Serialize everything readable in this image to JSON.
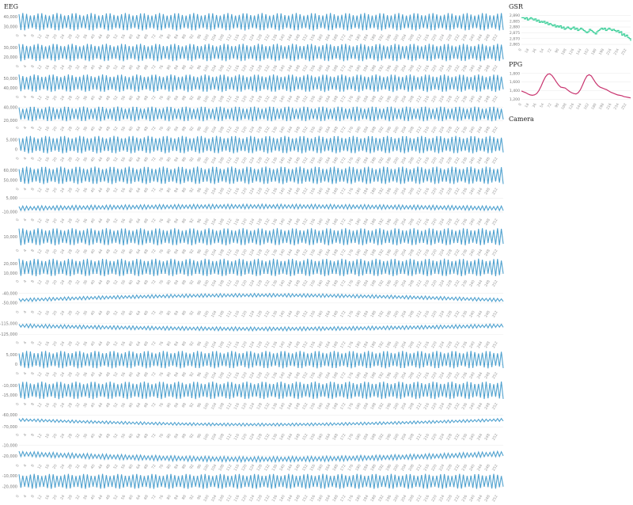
{
  "panels": {
    "eeg_title": "EEG",
    "gsr_title": "GSR",
    "ppg_title": "PPG",
    "camera_title": "Camera"
  },
  "colors": {
    "eeg_line": "#4ea1cf",
    "gsr_line": "#3ecf9a",
    "ppg_line": "#c8336e",
    "grid": "#eeeeee",
    "tick_text": "#777777"
  },
  "chart_data": [
    {
      "id": "eeg",
      "type": "line",
      "title": "EEG",
      "x_ticks": [
        0,
        4,
        8,
        12,
        16,
        20,
        24,
        28,
        32,
        36,
        40,
        44,
        48,
        52,
        56,
        60,
        64,
        68,
        72,
        76,
        80,
        84,
        88,
        92,
        96,
        100,
        104,
        108,
        112,
        116,
        120,
        124,
        128,
        132,
        136,
        140,
        144,
        148,
        152,
        156,
        160,
        164,
        168,
        172,
        176,
        180,
        184,
        188,
        192,
        196,
        200,
        204,
        208,
        212,
        216,
        220,
        224,
        228,
        232,
        236,
        240,
        244,
        248,
        252
      ],
      "x_range": [
        0,
        255
      ],
      "series": [
        {
          "channel": 1,
          "y_ticks": [
            "40,000",
            "30,000"
          ],
          "y_range": [
            24000,
            46000
          ],
          "center": 35000,
          "amp": 9000,
          "drift": 0
        },
        {
          "channel": 2,
          "y_ticks": [
            "30,000",
            "20,000"
          ],
          "y_range": [
            14000,
            36000
          ],
          "center": 25000,
          "amp": 9000,
          "drift": 0
        },
        {
          "channel": 3,
          "y_ticks": [
            "50,000",
            "40,000"
          ],
          "y_range": [
            34000,
            56000
          ],
          "center": 45000,
          "amp": 9000,
          "drift": 0
        },
        {
          "channel": 4,
          "y_ticks": [
            "40,000",
            "20,000"
          ],
          "y_range": [
            14000,
            46000
          ],
          "center": 30000,
          "amp": 11000,
          "drift": 0
        },
        {
          "channel": 5,
          "y_ticks": [
            "5,000",
            "0"
          ],
          "y_range": [
            -3000,
            8000
          ],
          "center": 2500,
          "amp": 4500,
          "drift": 0
        },
        {
          "channel": 6,
          "y_ticks": [
            "60,000",
            "50,000"
          ],
          "y_range": [
            44000,
            66000
          ],
          "center": 55000,
          "amp": 9000,
          "drift": 0
        },
        {
          "channel": 7,
          "y_ticks": [
            "5,000",
            "-10,000"
          ],
          "y_range": [
            -15000,
            8000
          ],
          "center": -6000,
          "amp": 2500,
          "drift": 2000
        },
        {
          "channel": 8,
          "y_ticks": [
            "10,000"
          ],
          "y_range": [
            0,
            20000
          ],
          "center": 10000,
          "amp": 8000,
          "drift": 0
        },
        {
          "channel": 9,
          "y_ticks": [
            "20,000",
            "10,000"
          ],
          "y_range": [
            5000,
            27000
          ],
          "center": 16000,
          "amp": 9000,
          "drift": 0
        },
        {
          "channel": 10,
          "y_ticks": [
            "-40,000",
            "-50,000"
          ],
          "y_range": [
            -56000,
            -34000
          ],
          "center": -47000,
          "amp": 1800,
          "drift": 5000
        },
        {
          "channel": 11,
          "y_ticks": [
            "-115,000",
            "-125,000"
          ],
          "y_range": [
            -130000,
            -110000
          ],
          "center": -117000,
          "amp": 1800,
          "drift": -3000
        },
        {
          "channel": 12,
          "y_ticks": [
            "5,000",
            "0"
          ],
          "y_range": [
            -3000,
            8000
          ],
          "center": 2500,
          "amp": 4500,
          "drift": 0
        },
        {
          "channel": 13,
          "y_ticks": [
            "-10,000",
            "-15,000"
          ],
          "y_range": [
            -18000,
            -7000
          ],
          "center": -12500,
          "amp": 4500,
          "drift": 0
        },
        {
          "channel": 14,
          "y_ticks": [
            "-60,000",
            "-70,000"
          ],
          "y_range": [
            -74000,
            -56000
          ],
          "center": -64000,
          "amp": 1200,
          "drift": -4000
        },
        {
          "channel": 15,
          "y_ticks": [
            "-10,000",
            "-20,000"
          ],
          "y_range": [
            -26000,
            -6000
          ],
          "center": -18000,
          "amp": 2500,
          "drift": -5000
        },
        {
          "channel": 16,
          "y_ticks": [
            "-10,000",
            "-20,000"
          ],
          "y_range": [
            -26000,
            -6000
          ],
          "center": -15000,
          "amp": 7000,
          "drift": 0
        }
      ]
    },
    {
      "id": "gsr",
      "type": "line",
      "title": "GSR",
      "y_ticks": [
        "2,890",
        "2,885",
        "2,880",
        "2,875",
        "2,870",
        "2,865"
      ],
      "y_range": [
        2863,
        2891
      ],
      "x_ticks": [
        0,
        18,
        36,
        54,
        72,
        90,
        108,
        126,
        144,
        162,
        180,
        198,
        216,
        234,
        252
      ],
      "x_range": [
        0,
        262
      ],
      "values": [
        2888,
        2888,
        2887,
        2888,
        2886,
        2887,
        2888,
        2887,
        2886,
        2887,
        2885,
        2886,
        2884,
        2885,
        2884,
        2885,
        2883,
        2884,
        2882,
        2883,
        2882,
        2881,
        2882,
        2880,
        2881,
        2880,
        2881,
        2879,
        2880,
        2878,
        2879,
        2880,
        2879,
        2878,
        2879,
        2880,
        2878,
        2879,
        2877,
        2878,
        2879,
        2878,
        2877,
        2876,
        2875,
        2876,
        2878,
        2877,
        2876,
        2875,
        2874,
        2876,
        2877,
        2878,
        2879,
        2878,
        2879,
        2877,
        2878,
        2879,
        2878,
        2877,
        2878,
        2877,
        2876,
        2877,
        2875,
        2876,
        2873,
        2874,
        2872,
        2873,
        2871,
        2870,
        2868
      ]
    },
    {
      "id": "ppg",
      "type": "line",
      "title": "PPG",
      "y_ticks": [
        "1,800",
        "1,600",
        "1,400",
        "1,200"
      ],
      "y_range": [
        1150,
        1850
      ],
      "x_ticks": [
        0,
        18,
        36,
        54,
        72,
        90,
        108,
        126,
        144,
        162,
        180,
        198,
        216,
        234,
        252
      ],
      "x_range": [
        0,
        262
      ],
      "values": [
        1390,
        1370,
        1350,
        1320,
        1300,
        1290,
        1300,
        1330,
        1400,
        1500,
        1620,
        1720,
        1780,
        1790,
        1750,
        1680,
        1600,
        1530,
        1480,
        1470,
        1460,
        1420,
        1380,
        1350,
        1330,
        1320,
        1350,
        1420,
        1530,
        1650,
        1740,
        1770,
        1740,
        1660,
        1580,
        1520,
        1480,
        1460,
        1440,
        1420,
        1390,
        1360,
        1340,
        1320,
        1300,
        1290,
        1280,
        1260,
        1250,
        1240,
        1230
      ]
    }
  ]
}
